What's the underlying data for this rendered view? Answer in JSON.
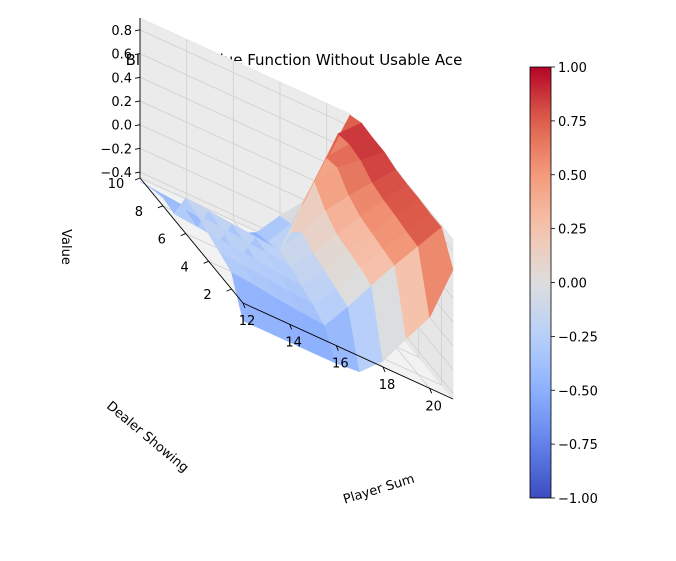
{
  "chart_data": {
    "type": "surface3d",
    "title": "Blackjack Value Function Without Usable Ace",
    "xlabel": "Player Sum",
    "ylabel": "Dealer Showing",
    "zlabel": "Value",
    "x": [
      12,
      13,
      14,
      15,
      16,
      17,
      18,
      19,
      20,
      21
    ],
    "y": [
      1,
      2,
      3,
      4,
      5,
      6,
      7,
      8,
      9,
      10
    ],
    "x_ticks": [
      "12",
      "14",
      "16",
      "18",
      "20"
    ],
    "y_ticks": [
      "2",
      "4",
      "6",
      "8",
      "10"
    ],
    "z_ticks": [
      "−0.4",
      "−0.2",
      "0.0",
      "0.2",
      "0.4",
      "0.6",
      "0.8"
    ],
    "xlim": [
      12,
      21
    ],
    "ylim": [
      1,
      10
    ],
    "zlim": [
      -0.45,
      0.9
    ],
    "z": [
      [
        -0.6,
        -0.6,
        -0.6,
        -0.6,
        -0.6,
        -0.58,
        -0.4,
        -0.12,
        0.15,
        0.64
      ],
      [
        -0.31,
        -0.33,
        -0.36,
        -0.38,
        -0.4,
        -0.15,
        0.12,
        0.38,
        0.63,
        0.88
      ],
      [
        -0.26,
        -0.28,
        -0.3,
        -0.32,
        -0.34,
        -0.12,
        0.16,
        0.4,
        0.64,
        0.88
      ],
      [
        -0.22,
        -0.24,
        -0.26,
        -0.28,
        -0.3,
        -0.08,
        0.18,
        0.42,
        0.66,
        0.89
      ],
      [
        -0.17,
        -0.19,
        -0.21,
        -0.23,
        -0.25,
        -0.05,
        0.2,
        0.44,
        0.67,
        0.89
      ],
      [
        -0.15,
        -0.17,
        -0.19,
        -0.21,
        -0.23,
        0.01,
        0.28,
        0.5,
        0.7,
        0.9
      ],
      [
        -0.4,
        -0.42,
        -0.44,
        -0.46,
        -0.48,
        -0.1,
        0.42,
        0.62,
        0.77,
        0.93
      ],
      [
        -0.38,
        -0.4,
        -0.42,
        -0.44,
        -0.46,
        -0.38,
        0.1,
        0.59,
        0.79,
        0.93
      ],
      [
        -0.42,
        -0.44,
        -0.46,
        -0.48,
        -0.5,
        -0.42,
        -0.18,
        0.28,
        0.76,
        0.94
      ],
      [
        -0.48,
        -0.5,
        -0.52,
        -0.54,
        -0.56,
        -0.46,
        -0.23,
        -0.02,
        0.43,
        0.89
      ]
    ],
    "colorbar": {
      "colormap": "coolwarm",
      "range": [
        -1.0,
        1.0
      ],
      "ticks": [
        "−1.00",
        "−0.75",
        "−0.50",
        "−0.25",
        "0.00",
        "0.25",
        "0.50",
        "0.75",
        "1.00"
      ]
    }
  }
}
